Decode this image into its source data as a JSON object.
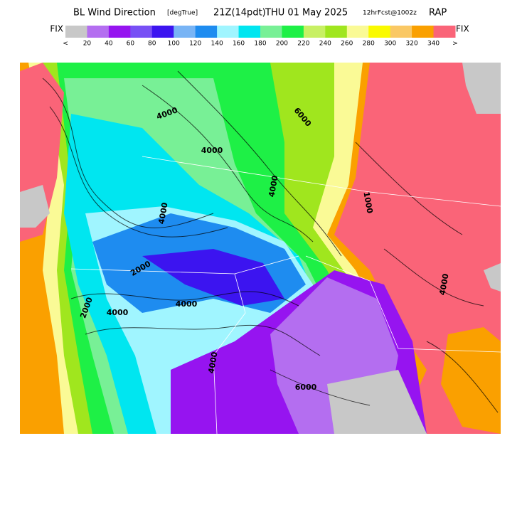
{
  "header": {
    "parts": [
      "BL Wind Direction",
      "[degTrue]",
      "21Z(14pdt)",
      "THU 01 May 2025",
      "12hrFcst@1002z",
      "RAP"
    ]
  },
  "colorbar": {
    "left_label": "FIX",
    "right_label": "FIX",
    "colors": [
      "#c8c8c8",
      "#b46ef0",
      "#9614f0",
      "#7850f5",
      "#3c14f0",
      "#78b4f5",
      "#1e8cf0",
      "#a0f5ff",
      "#00e6f0",
      "#78f096",
      "#1ef046",
      "#c8f064",
      "#a0e61e",
      "#fafa96",
      "#fafa00",
      "#fac864",
      "#faa000",
      "#fa6478"
    ],
    "labels": [
      "<",
      "20",
      "40",
      "60",
      "80",
      "100",
      "120",
      "140",
      "160",
      "180",
      "200",
      "220",
      "240",
      "260",
      "280",
      "300",
      "320",
      "340",
      ">"
    ]
  },
  "map": {
    "contour_labels": [
      "4000",
      "4000",
      "2000",
      "4000",
      "4000",
      "6000",
      "4000",
      "2000",
      "4000",
      "4000",
      "1000",
      "6000",
      "4000"
    ]
  }
}
